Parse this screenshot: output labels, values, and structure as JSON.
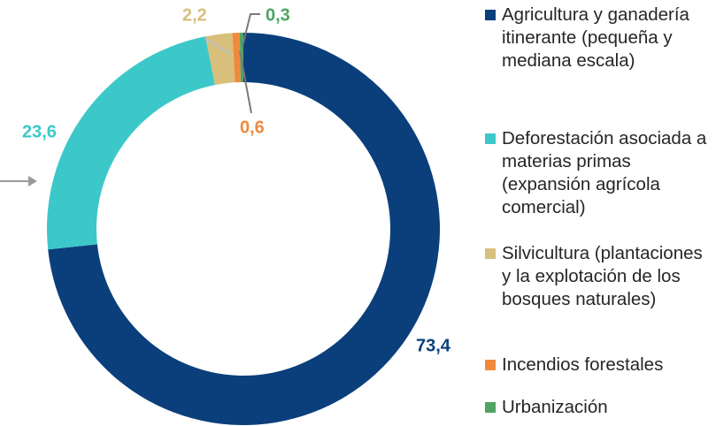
{
  "chart_data": {
    "type": "donut",
    "categories": [
      "Agricultura y ganadería itinerante (pequeña y mediana escala)",
      "Deforestación asociada a materias primas (expansión agrícola comercial)",
      "Silvicultura (plantaciones y la explotación de los bosques naturales)",
      "Incendios forestales",
      "Urbanización"
    ],
    "values": [
      73.4,
      23.6,
      2.2,
      0.6,
      0.3
    ],
    "value_labels": [
      "73,4",
      "23,6",
      "2,2",
      "0,6",
      "0,3"
    ],
    "colors": [
      "#0b3f7c",
      "#3cc8c8",
      "#d8c07c",
      "#ef8a3c",
      "#4ea564"
    ],
    "legend": "right"
  }
}
